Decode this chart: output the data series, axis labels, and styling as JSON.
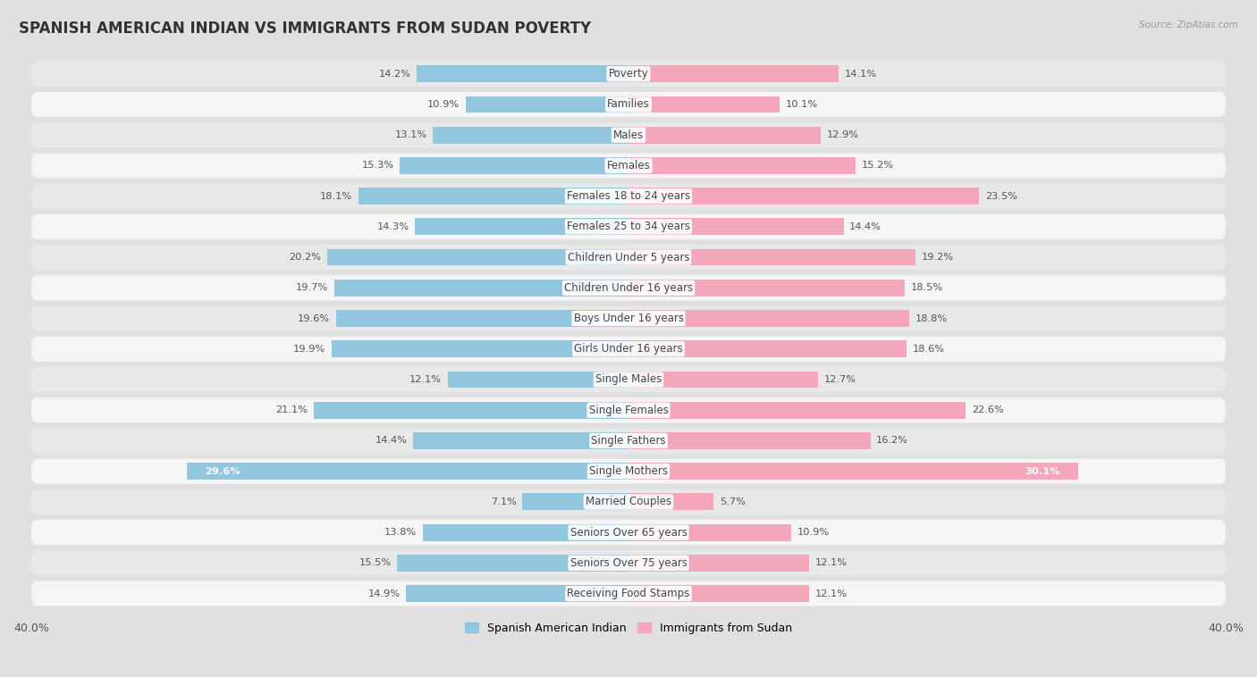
{
  "title": "SPANISH AMERICAN INDIAN VS IMMIGRANTS FROM SUDAN POVERTY",
  "source": "Source: ZipAtlas.com",
  "categories": [
    "Poverty",
    "Families",
    "Males",
    "Females",
    "Females 18 to 24 years",
    "Females 25 to 34 years",
    "Children Under 5 years",
    "Children Under 16 years",
    "Boys Under 16 years",
    "Girls Under 16 years",
    "Single Males",
    "Single Females",
    "Single Fathers",
    "Single Mothers",
    "Married Couples",
    "Seniors Over 65 years",
    "Seniors Over 75 years",
    "Receiving Food Stamps"
  ],
  "left_values": [
    14.2,
    10.9,
    13.1,
    15.3,
    18.1,
    14.3,
    20.2,
    19.7,
    19.6,
    19.9,
    12.1,
    21.1,
    14.4,
    29.6,
    7.1,
    13.8,
    15.5,
    14.9
  ],
  "right_values": [
    14.1,
    10.1,
    12.9,
    15.2,
    23.5,
    14.4,
    19.2,
    18.5,
    18.8,
    18.6,
    12.7,
    22.6,
    16.2,
    30.1,
    5.7,
    10.9,
    12.1,
    12.1
  ],
  "left_color": "#92c5de",
  "right_color": "#f4a6bb",
  "row_color_odd": "#e8e8e8",
  "row_color_even": "#f5f5f5",
  "background_color": "#e0e0e0",
  "axis_max": 40.0,
  "left_label": "Spanish American Indian",
  "right_label": "Immigrants from Sudan",
  "title_fontsize": 12,
  "label_fontsize": 8.5,
  "value_fontsize": 8.2
}
